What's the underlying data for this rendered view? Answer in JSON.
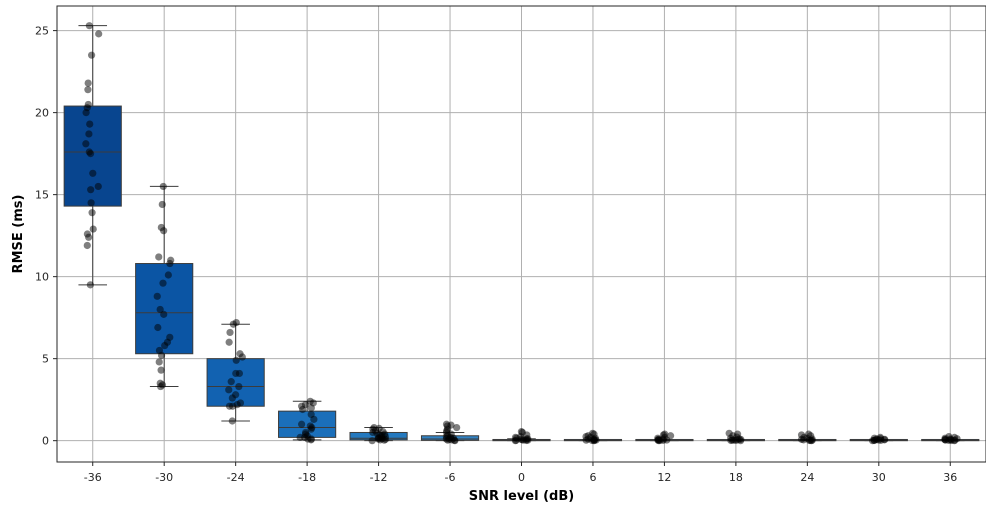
{
  "chart_data": {
    "type": "box",
    "xlabel": "SNR level (dB)",
    "ylabel": "RMSE (ms)",
    "categories": [
      "-36",
      "-30",
      "-24",
      "-18",
      "-12",
      "-6",
      "0",
      "6",
      "12",
      "18",
      "24",
      "30",
      "36"
    ],
    "ylim": [
      -1.3,
      26.5
    ],
    "yticks": [
      0,
      5,
      10,
      15,
      20,
      25
    ],
    "grid": true,
    "boxes": [
      {
        "cat": "-36",
        "whislo": 9.5,
        "q1": 14.3,
        "med": 17.6,
        "q3": 20.4,
        "whishi": 25.3,
        "color": "#08458f",
        "points": [
          25.3,
          24.8,
          23.5,
          21.8,
          21.4,
          20.5,
          20.3,
          20.0,
          19.3,
          18.7,
          18.1,
          17.6,
          17.5,
          16.3,
          15.5,
          15.3,
          14.5,
          13.9,
          12.9,
          12.6,
          12.4,
          11.9,
          9.5
        ]
      },
      {
        "cat": "-30",
        "whislo": 3.3,
        "q1": 5.3,
        "med": 7.8,
        "q3": 10.8,
        "whishi": 15.5,
        "color": "#0b55a4",
        "points": [
          15.5,
          14.4,
          13.0,
          12.8,
          11.2,
          11.0,
          10.8,
          10.1,
          9.6,
          8.8,
          8.0,
          7.7,
          6.9,
          6.3,
          6.0,
          5.8,
          5.5,
          5.2,
          4.8,
          4.3,
          3.5,
          3.4,
          3.3
        ]
      },
      {
        "cat": "-24",
        "whislo": 1.2,
        "q1": 2.1,
        "med": 3.3,
        "q3": 5.0,
        "whishi": 7.1,
        "color": "#1262b1",
        "points": [
          7.2,
          7.1,
          6.6,
          6.0,
          5.3,
          5.1,
          4.9,
          4.1,
          4.1,
          3.6,
          3.3,
          3.1,
          2.8,
          2.6,
          2.3,
          2.2,
          2.1,
          2.1,
          1.2
        ]
      },
      {
        "cat": "-18",
        "whislo": 0.05,
        "q1": 0.2,
        "med": 0.8,
        "q3": 1.8,
        "whishi": 2.4,
        "color": "#1b6fba",
        "points": [
          2.4,
          2.3,
          2.2,
          2.1,
          2.0,
          1.9,
          1.6,
          1.3,
          1.0,
          0.9,
          0.8,
          0.7,
          0.5,
          0.4,
          0.3,
          0.2,
          0.2,
          0.1,
          0.1,
          0.05
        ]
      },
      {
        "cat": "-12",
        "whislo": 0.0,
        "q1": 0.05,
        "med": 0.15,
        "q3": 0.5,
        "whishi": 0.8,
        "color": "#2479bf",
        "points": [
          0.8,
          0.75,
          0.7,
          0.6,
          0.55,
          0.5,
          0.45,
          0.4,
          0.35,
          0.3,
          0.25,
          0.2,
          0.18,
          0.15,
          0.12,
          0.1,
          0.08,
          0.05,
          0.03,
          0.0
        ]
      },
      {
        "cat": "-6",
        "whislo": 0.0,
        "q1": 0.02,
        "med": 0.1,
        "q3": 0.3,
        "whishi": 0.5,
        "color": "#3182c3",
        "points": [
          1.0,
          0.95,
          0.9,
          0.8,
          0.7,
          0.6,
          0.5,
          0.4,
          0.3,
          0.25,
          0.2,
          0.15,
          0.1,
          0.08,
          0.05,
          0.03,
          0.02,
          0.0
        ]
      },
      {
        "cat": "0",
        "whislo": 0.0,
        "q1": 0.0,
        "med": 0.02,
        "q3": 0.06,
        "whishi": 0.12,
        "color": "#3a88c6",
        "points": [
          0.55,
          0.5,
          0.35,
          0.25,
          0.2,
          0.15,
          0.12,
          0.1,
          0.08,
          0.05,
          0.04,
          0.03,
          0.02,
          0.01,
          0.0
        ]
      },
      {
        "cat": "6",
        "whislo": 0.0,
        "q1": 0.0,
        "med": 0.01,
        "q3": 0.03,
        "whishi": 0.06,
        "color": "#3f8cc8",
        "points": [
          0.45,
          0.4,
          0.3,
          0.25,
          0.2,
          0.15,
          0.1,
          0.08,
          0.06,
          0.04,
          0.03,
          0.02,
          0.01,
          0.0
        ]
      },
      {
        "cat": "12",
        "whislo": 0.0,
        "q1": 0.0,
        "med": 0.01,
        "q3": 0.02,
        "whishi": 0.04,
        "color": "#408dc9",
        "points": [
          0.4,
          0.35,
          0.3,
          0.2,
          0.15,
          0.1,
          0.08,
          0.05,
          0.04,
          0.03,
          0.02,
          0.01,
          0.0
        ]
      },
      {
        "cat": "18",
        "whislo": 0.0,
        "q1": 0.0,
        "med": 0.01,
        "q3": 0.02,
        "whishi": 0.04,
        "color": "#408dc9",
        "points": [
          0.45,
          0.4,
          0.3,
          0.22,
          0.15,
          0.1,
          0.08,
          0.05,
          0.04,
          0.03,
          0.02,
          0.01,
          0.0
        ]
      },
      {
        "cat": "24",
        "whislo": 0.0,
        "q1": 0.0,
        "med": 0.01,
        "q3": 0.02,
        "whishi": 0.04,
        "color": "#408dc9",
        "points": [
          0.4,
          0.35,
          0.3,
          0.2,
          0.15,
          0.1,
          0.08,
          0.05,
          0.03,
          0.02,
          0.01,
          0.0
        ]
      },
      {
        "cat": "30",
        "whislo": 0.0,
        "q1": 0.0,
        "med": 0.01,
        "q3": 0.02,
        "whishi": 0.03,
        "color": "#408dc9",
        "points": [
          0.2,
          0.15,
          0.12,
          0.1,
          0.08,
          0.06,
          0.05,
          0.04,
          0.03,
          0.02,
          0.01,
          0.0
        ]
      },
      {
        "cat": "36",
        "whislo": 0.0,
        "q1": 0.0,
        "med": 0.01,
        "q3": 0.02,
        "whishi": 0.03,
        "color": "#408dc9",
        "points": [
          0.25,
          0.2,
          0.15,
          0.12,
          0.1,
          0.08,
          0.06,
          0.05,
          0.04,
          0.03,
          0.02,
          0.01,
          0.0
        ]
      }
    ]
  }
}
